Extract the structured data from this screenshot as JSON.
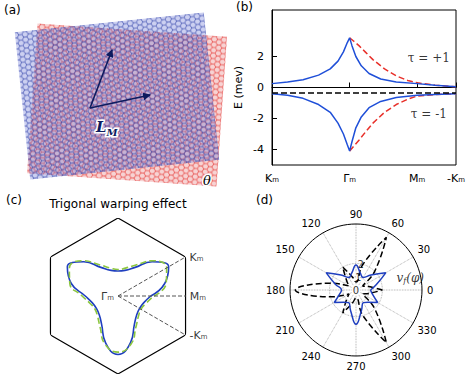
{
  "chart_data": [
    {
      "panel_label": "(b)",
      "type": "line",
      "ylabel": "E (mev)",
      "xlim": [
        0,
        2.37
      ],
      "xticks": [
        {
          "value": 0,
          "label": "Kₘ"
        },
        {
          "value": 1,
          "label": "Γₘ"
        },
        {
          "value": 1.87,
          "label": "Mₘ"
        },
        {
          "value": 2.37,
          "label": "-Kₘ"
        }
      ],
      "ylim": [
        -5,
        5
      ],
      "yticks": [
        -4,
        -2,
        0,
        2
      ],
      "grid": false,
      "series": [
        {
          "color": "#e8302a",
          "line_style": "dashed",
          "x": [
            1.0,
            1.05,
            1.12,
            1.2,
            1.3,
            1.45,
            1.6,
            1.75,
            1.87,
            2.1,
            2.37
          ],
          "values": [
            3.2,
            3.0,
            2.7,
            2.3,
            1.8,
            1.2,
            0.75,
            0.45,
            0.3,
            0.15,
            0.05
          ]
        },
        {
          "color": "#e8302a",
          "line_style": "dashed",
          "x": [
            1.0,
            1.05,
            1.12,
            1.2,
            1.3,
            1.45,
            1.6,
            1.75,
            1.87,
            2.1,
            2.37
          ],
          "values": [
            -4.1,
            -3.8,
            -3.4,
            -2.9,
            -2.3,
            -1.6,
            -1.1,
            -0.75,
            -0.55,
            -0.45,
            -0.4
          ]
        },
        {
          "color": "#1f4fd8",
          "line_style": "solid",
          "x": [
            0,
            0.2,
            0.4,
            0.6,
            0.75,
            0.85,
            0.92,
            0.97,
            1.0,
            1.03,
            1.08,
            1.15,
            1.25,
            1.4,
            1.6,
            1.87,
            2.1,
            2.37
          ],
          "values": [
            0.25,
            0.35,
            0.5,
            0.8,
            1.2,
            1.7,
            2.3,
            2.9,
            3.2,
            2.7,
            2.0,
            1.4,
            0.9,
            0.55,
            0.35,
            0.25,
            0.15,
            0.05
          ]
        },
        {
          "color": "#1f4fd8",
          "line_style": "solid",
          "x": [
            0,
            0.2,
            0.4,
            0.6,
            0.75,
            0.85,
            0.92,
            0.97,
            1.0,
            1.03,
            1.08,
            1.15,
            1.25,
            1.4,
            1.6,
            1.87,
            2.1,
            2.37
          ],
          "values": [
            -0.4,
            -0.5,
            -0.7,
            -1.1,
            -1.6,
            -2.3,
            -3.0,
            -3.7,
            -4.1,
            -3.5,
            -2.6,
            -1.9,
            -1.3,
            -0.9,
            -0.65,
            -0.5,
            -0.45,
            -0.4
          ]
        },
        {
          "color": "#000000",
          "line_style": "dashed",
          "x": [
            0,
            2.37
          ],
          "values": [
            -0.35,
            -0.35
          ]
        }
      ],
      "annotations": [
        {
          "text": "τ = +1",
          "x": 2.02,
          "y": 1.9
        },
        {
          "text": "τ = -1",
          "x": 2.02,
          "y": -1.7
        }
      ]
    },
    {
      "panel_label": "(c)",
      "type": "polar",
      "title": "Trigonal warping effect",
      "rlim": [
        0,
        1
      ],
      "angles": [
        0,
        15,
        30,
        45,
        60,
        75,
        90,
        105,
        120,
        135,
        150,
        165,
        180,
        195,
        210,
        225,
        240,
        255,
        270,
        285,
        300,
        315,
        330,
        345,
        360
      ],
      "series": [
        {
          "color": "#1f3fbf",
          "line_style": "solid",
          "values": [
            0.42,
            0.62,
            0.75,
            0.62,
            0.42,
            0.34,
            0.32,
            0.34,
            0.42,
            0.62,
            0.75,
            0.62,
            0.42,
            0.34,
            0.32,
            0.34,
            0.42,
            0.62,
            0.75,
            0.62,
            0.42,
            0.34,
            0.32,
            0.34,
            0.42
          ]
        },
        {
          "color": "#8cc63f",
          "line_style": "dashed",
          "values": [
            0.46,
            0.64,
            0.72,
            0.64,
            0.46,
            0.37,
            0.34,
            0.37,
            0.46,
            0.64,
            0.72,
            0.64,
            0.46,
            0.37,
            0.34,
            0.37,
            0.46,
            0.64,
            0.72,
            0.64,
            0.46,
            0.37,
            0.34,
            0.37,
            0.46
          ]
        }
      ],
      "boundary": {
        "color": "#000000",
        "r": [
          1,
          1,
          1,
          1,
          1,
          1,
          1
        ],
        "angles": [
          30,
          90,
          150,
          210,
          270,
          330,
          30
        ]
      },
      "points": [
        {
          "text": "Γₘ",
          "r": 0,
          "angle": 0
        },
        {
          "text": "Kₘ",
          "r": 1,
          "angle": 30
        },
        {
          "text": "Mₘ",
          "r": 0.87,
          "angle": 0
        },
        {
          "text": "-Kₘ",
          "r": 1,
          "angle": 330
        }
      ]
    },
    {
      "panel_label": "(d)",
      "type": "polar",
      "rlim": [
        0,
        5
      ],
      "rticks": [
        0,
        1,
        2
      ],
      "thetaticks": [
        0,
        30,
        60,
        90,
        120,
        150,
        180,
        210,
        240,
        270,
        300,
        330
      ],
      "grid": true,
      "angles": [
        0,
        15,
        30,
        45,
        60,
        75,
        90,
        105,
        120,
        135,
        150,
        165,
        180,
        195,
        210,
        225,
        240,
        255,
        270,
        285,
        300,
        315,
        330,
        345,
        360
      ],
      "series": [
        {
          "color": "#000000",
          "line_style": "dashed",
          "values": [
            2.0,
            1.0,
            0.6,
            2.0,
            4.6,
            2.0,
            0.6,
            1.0,
            2.0,
            1.0,
            0.6,
            2.0,
            4.6,
            2.0,
            0.6,
            1.0,
            2.0,
            1.0,
            0.6,
            2.0,
            4.6,
            2.0,
            0.6,
            1.0,
            2.0
          ]
        },
        {
          "color": "#1f3fbf",
          "line_style": "solid",
          "values": [
            1.1,
            1.6,
            2.6,
            1.6,
            1.1,
            1.3,
            1.9,
            1.3,
            1.1,
            1.6,
            2.6,
            1.6,
            1.1,
            1.3,
            1.9,
            1.3,
            1.1,
            1.6,
            2.6,
            1.6,
            1.1,
            1.3,
            1.9,
            1.3,
            1.1
          ]
        }
      ],
      "annotation": {
        "base": "v",
        "sub": "f",
        "rest": "(φ)",
        "r": 4.2,
        "angle": 12
      }
    }
  ],
  "diagram": {
    "panel_label": "(a)",
    "vector_label": {
      "base": "L",
      "sub": "M"
    },
    "angle_label": "θ"
  }
}
